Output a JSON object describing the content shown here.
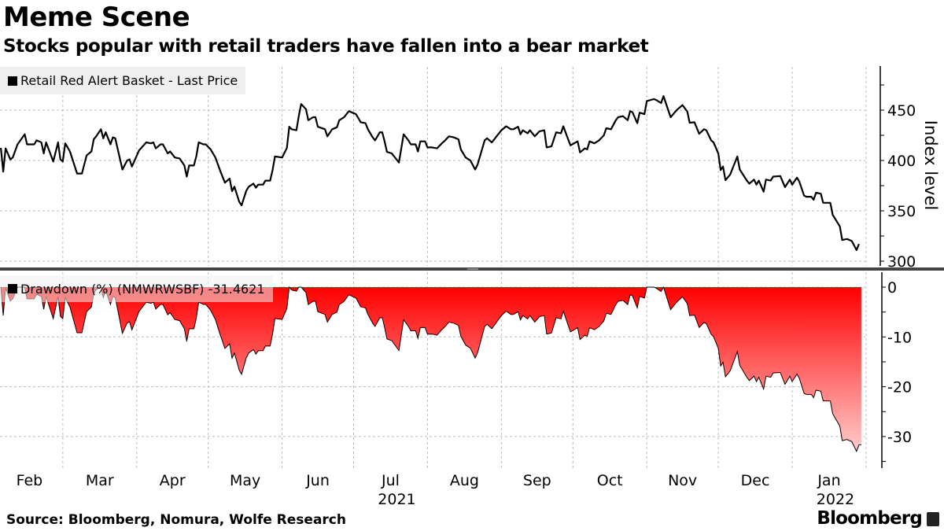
{
  "header": {
    "title": "Meme Scene",
    "subtitle": "Stocks popular with retail traders have fallen into a bear market"
  },
  "footer": {
    "source": "Source: Bloomberg, Nomura, Wolfe Research",
    "brand": "Bloomberg"
  },
  "colors": {
    "line": "#000000",
    "fill_top": "#ff0000",
    "fill_bottom": "#ffcccc",
    "grid": "#bbbbbb",
    "separator": "#444444"
  },
  "chart_data": [
    {
      "type": "line",
      "title": "Retail Red Alert Basket - Last Price",
      "legend": "Retail Red Alert Basket - Last Price",
      "ylabel": "Index level",
      "ylim": [
        290,
        490
      ],
      "yticks": [
        300,
        350,
        400,
        450
      ],
      "x_unit": "days since 2021-02-01",
      "xlim": [
        0,
        365
      ],
      "month_labels": [
        "Feb",
        "Mar",
        "Apr",
        "May",
        "Jun",
        "Jul",
        "Aug",
        "Sep",
        "Oct",
        "Nov",
        "Dec",
        "Jan"
      ],
      "month_starts": [
        0,
        28,
        59,
        89,
        120,
        150,
        181,
        212,
        242,
        273,
        303,
        334,
        365
      ],
      "year_labels": [
        {
          "label": "2021",
          "month": "Jul"
        },
        {
          "label": "2022",
          "month": "Jan"
        }
      ],
      "grid": true,
      "points": [
        [
          2,
          412.5
        ],
        [
          3,
          389
        ],
        [
          4,
          412
        ],
        [
          6,
          401
        ],
        [
          7,
          403
        ],
        [
          9,
          416
        ],
        [
          12,
          426
        ],
        [
          13,
          416
        ],
        [
          16,
          416
        ],
        [
          17,
          420
        ],
        [
          19,
          418
        ],
        [
          20,
          407
        ],
        [
          21,
          418
        ],
        [
          24,
          399
        ],
        [
          26,
          418
        ],
        [
          27,
          401
        ],
        [
          28,
          399
        ],
        [
          29,
          417
        ],
        [
          31,
          409
        ],
        [
          34,
          387
        ],
        [
          36,
          387
        ],
        [
          38,
          405
        ],
        [
          40,
          409
        ],
        [
          41,
          421
        ],
        [
          42,
          424
        ],
        [
          44,
          431
        ],
        [
          45,
          422
        ],
        [
          46,
          428
        ],
        [
          48,
          416
        ],
        [
          49,
          423
        ],
        [
          50,
          422
        ],
        [
          53,
          391
        ],
        [
          55,
          400
        ],
        [
          56,
          401
        ],
        [
          57,
          394
        ],
        [
          60,
          410
        ],
        [
          63,
          418
        ],
        [
          65,
          417
        ],
        [
          66,
          418
        ],
        [
          67,
          412
        ],
        [
          69,
          416
        ],
        [
          70,
          416
        ],
        [
          72,
          407
        ],
        [
          73,
          409
        ],
        [
          75,
          403
        ],
        [
          77,
          402
        ],
        [
          79,
          395
        ],
        [
          80,
          384
        ],
        [
          81,
          395
        ],
        [
          83,
          395
        ],
        [
          84,
          404
        ],
        [
          85,
          418
        ],
        [
          87,
          416
        ],
        [
          88,
          416
        ],
        [
          90,
          411
        ],
        [
          92,
          403
        ],
        [
          94,
          390
        ],
        [
          96,
          378
        ],
        [
          98,
          382
        ],
        [
          99,
          369.5
        ],
        [
          100,
          374
        ],
        [
          102,
          359
        ],
        [
          103,
          355.5
        ],
        [
          105,
          370
        ],
        [
          106,
          374
        ],
        [
          108,
          377
        ],
        [
          109,
          373
        ],
        [
          110,
          376
        ],
        [
          112,
          376
        ],
        [
          113,
          380
        ],
        [
          115,
          380
        ],
        [
          116,
          390.5
        ],
        [
          117,
          404
        ],
        [
          120,
          403
        ],
        [
          122,
          412.5
        ],
        [
          123,
          433.5
        ],
        [
          124,
          431
        ],
        [
          126,
          430
        ],
        [
          127,
          444
        ],
        [
          128,
          456
        ],
        [
          130,
          451
        ],
        [
          131,
          440
        ],
        [
          133,
          443
        ],
        [
          134,
          443
        ],
        [
          135,
          433.5
        ],
        [
          138,
          431
        ],
        [
          139,
          424
        ],
        [
          141,
          431
        ],
        [
          143,
          433
        ],
        [
          144,
          440
        ],
        [
          146,
          443
        ],
        [
          148,
          449
        ],
        [
          150,
          447
        ],
        [
          151,
          446
        ],
        [
          153,
          438
        ],
        [
          155,
          437
        ],
        [
          156,
          431
        ],
        [
          158,
          423
        ],
        [
          159,
          420
        ],
        [
          161,
          428
        ],
        [
          162,
          428
        ],
        [
          163,
          419
        ],
        [
          164,
          408.5
        ],
        [
          166,
          407
        ],
        [
          169,
          398
        ],
        [
          171,
          426
        ],
        [
          173,
          420
        ],
        [
          174,
          416
        ],
        [
          176,
          416
        ],
        [
          177,
          409
        ],
        [
          178,
          419
        ],
        [
          180,
          419
        ],
        [
          181,
          413
        ],
        [
          183,
          413
        ],
        [
          185,
          412
        ],
        [
          187,
          417
        ],
        [
          188,
          419
        ],
        [
          190,
          424
        ],
        [
          192,
          423
        ],
        [
          194,
          421
        ],
        [
          195,
          411
        ],
        [
          197,
          403
        ],
        [
          199,
          400
        ],
        [
          201,
          391
        ],
        [
          202,
          396
        ],
        [
          205,
          420
        ],
        [
          206,
          422
        ],
        [
          208,
          418
        ],
        [
          209,
          421
        ],
        [
          211,
          427
        ],
        [
          212,
          430
        ],
        [
          214,
          434
        ],
        [
          216,
          431
        ],
        [
          217,
          431
        ],
        [
          219,
          433.5
        ],
        [
          220,
          426
        ],
        [
          221,
          430
        ],
        [
          223,
          427
        ],
        [
          224,
          430
        ],
        [
          226,
          424
        ],
        [
          228,
          429
        ],
        [
          230,
          430
        ],
        [
          231,
          413
        ],
        [
          233,
          414
        ],
        [
          235,
          428
        ],
        [
          237,
          427
        ],
        [
          238,
          434
        ],
        [
          240,
          421
        ],
        [
          241,
          415
        ],
        [
          244,
          419
        ],
        [
          245,
          408
        ],
        [
          247,
          412
        ],
        [
          248,
          411
        ],
        [
          249,
          419
        ],
        [
          251,
          417
        ],
        [
          253,
          420
        ],
        [
          255,
          425
        ],
        [
          256,
          432
        ],
        [
          258,
          431
        ],
        [
          260,
          440
        ],
        [
          261,
          443
        ],
        [
          263,
          444
        ],
        [
          265,
          440
        ],
        [
          266,
          449
        ],
        [
          267,
          448
        ],
        [
          269,
          437
        ],
        [
          270,
          447.5
        ],
        [
          272,
          446
        ],
        [
          273,
          459
        ],
        [
          276,
          461
        ],
        [
          277,
          460
        ],
        [
          279,
          457
        ],
        [
          280,
          464
        ],
        [
          281,
          457
        ],
        [
          283,
          443
        ],
        [
          285,
          448.5
        ],
        [
          286,
          451
        ],
        [
          288,
          455
        ],
        [
          290,
          448.5
        ],
        [
          291,
          437.5
        ],
        [
          293,
          438
        ],
        [
          295,
          426.5
        ],
        [
          297,
          431
        ],
        [
          298,
          430
        ],
        [
          300,
          420
        ],
        [
          301,
          418
        ],
        [
          303,
          407
        ],
        [
          304,
          390.5
        ],
        [
          305,
          394
        ],
        [
          306,
          380.5
        ],
        [
          308,
          386
        ],
        [
          311,
          404
        ],
        [
          312,
          391
        ],
        [
          315,
          380
        ],
        [
          316,
          377
        ],
        [
          318,
          381
        ],
        [
          319,
          376
        ],
        [
          320,
          380
        ],
        [
          322,
          369
        ],
        [
          323,
          381
        ],
        [
          325,
          380
        ],
        [
          326,
          384
        ],
        [
          329,
          384.5
        ],
        [
          331,
          373.5
        ],
        [
          333,
          381
        ],
        [
          334,
          376
        ],
        [
          336,
          383
        ],
        [
          337,
          379
        ],
        [
          339,
          365
        ],
        [
          340,
          364
        ],
        [
          342,
          364
        ],
        [
          343,
          361
        ],
        [
          344,
          368
        ],
        [
          346,
          367
        ],
        [
          347,
          358
        ],
        [
          350,
          358
        ],
        [
          351,
          346
        ],
        [
          354,
          334.5
        ],
        [
          355,
          321
        ],
        [
          357,
          322
        ],
        [
          359,
          320
        ],
        [
          361,
          311
        ],
        [
          362,
          317
        ]
      ]
    },
    {
      "type": "area",
      "title": "Drawdown (%) (NMWRWSBF)",
      "legend": "Drawdown (%) (NMWRWSBF) -31.4621",
      "last_value": -31.4621,
      "ylim": [
        -36,
        4
      ],
      "yticks": [
        0,
        -10,
        -20,
        -30
      ],
      "derived_from": "running-max drawdown of series 1 (percent)"
    }
  ]
}
